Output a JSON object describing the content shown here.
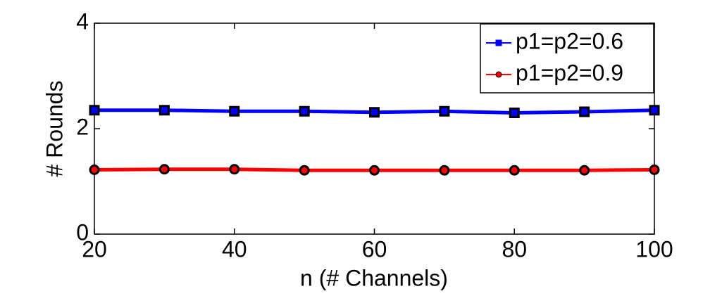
{
  "chart_data": {
    "type": "line",
    "x_label": "n (# Channels)",
    "y_label": "# Rounds",
    "x": [
      20,
      30,
      40,
      50,
      60,
      70,
      80,
      90,
      100
    ],
    "series": [
      {
        "name": "p1=p2=0.6",
        "color": "#0000ff",
        "marker": "square",
        "values": [
          2.35,
          2.35,
          2.33,
          2.33,
          2.31,
          2.33,
          2.3,
          2.32,
          2.35
        ]
      },
      {
        "name": "p1=p2=0.9",
        "color": "#ff0000",
        "marker": "circle",
        "values": [
          1.22,
          1.23,
          1.23,
          1.21,
          1.21,
          1.21,
          1.21,
          1.21,
          1.22
        ]
      }
    ],
    "xlim": [
      20,
      100
    ],
    "xticks": [
      20,
      40,
      60,
      80,
      100
    ],
    "ylim": [
      0,
      4
    ],
    "yticks": [
      0,
      2,
      4
    ],
    "grid": false,
    "legend": "top-right"
  }
}
